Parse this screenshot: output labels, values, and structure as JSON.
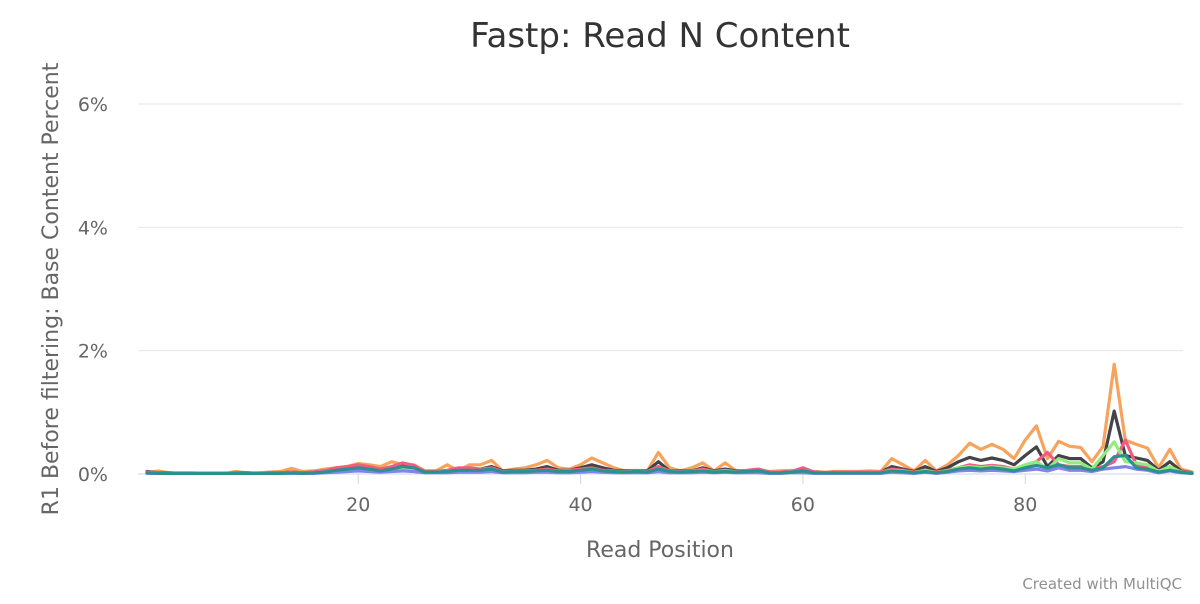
{
  "chart_data": {
    "type": "line",
    "title": "Fastp: Read N Content",
    "xlabel": "Read Position",
    "ylabel": "R1 Before filtering: Base Content Percent",
    "x_ticks": [
      20,
      40,
      60,
      80
    ],
    "y_ticks": [
      0,
      2,
      4,
      6
    ],
    "y_tick_suffix": "%",
    "xlim": [
      1,
      95
    ],
    "ylim": [
      0,
      6
    ],
    "grid": "horizontal",
    "legend": "none",
    "x": [
      1,
      2,
      3,
      4,
      5,
      6,
      7,
      8,
      9,
      10,
      11,
      12,
      13,
      14,
      15,
      16,
      17,
      18,
      19,
      20,
      21,
      22,
      23,
      24,
      25,
      26,
      27,
      28,
      29,
      30,
      31,
      32,
      33,
      34,
      35,
      36,
      37,
      38,
      39,
      40,
      41,
      42,
      43,
      44,
      45,
      46,
      47,
      48,
      49,
      50,
      51,
      52,
      53,
      54,
      55,
      56,
      57,
      58,
      59,
      60,
      61,
      62,
      63,
      64,
      65,
      66,
      67,
      68,
      69,
      70,
      71,
      72,
      73,
      74,
      75,
      76,
      77,
      78,
      79,
      80,
      81,
      82,
      83,
      84,
      85,
      86,
      87,
      88,
      89,
      90,
      91,
      92,
      93,
      94,
      95
    ],
    "series": [
      {
        "color": "#f7a35c",
        "values": [
          0.02,
          0.05,
          0.02,
          0.02,
          0.02,
          0.01,
          0.01,
          0.01,
          0.04,
          0.02,
          0.02,
          0.03,
          0.04,
          0.09,
          0.04,
          0.05,
          0.08,
          0.1,
          0.12,
          0.17,
          0.15,
          0.12,
          0.2,
          0.15,
          0.15,
          0.05,
          0.05,
          0.15,
          0.05,
          0.15,
          0.15,
          0.22,
          0.05,
          0.08,
          0.1,
          0.15,
          0.22,
          0.1,
          0.08,
          0.15,
          0.26,
          0.18,
          0.1,
          0.05,
          0.06,
          0.05,
          0.35,
          0.1,
          0.05,
          0.1,
          0.18,
          0.05,
          0.18,
          0.05,
          0.05,
          0.05,
          0.04,
          0.05,
          0.06,
          0.05,
          0.04,
          0.03,
          0.04,
          0.04,
          0.04,
          0.05,
          0.04,
          0.25,
          0.15,
          0.05,
          0.22,
          0.05,
          0.15,
          0.3,
          0.5,
          0.4,
          0.48,
          0.4,
          0.25,
          0.55,
          0.78,
          0.25,
          0.53,
          0.45,
          0.43,
          0.2,
          0.45,
          1.78,
          0.55,
          0.48,
          0.42,
          0.1,
          0.4,
          0.08,
          0.03
        ]
      },
      {
        "color": "#434348",
        "values": [
          0.04,
          0.02,
          0.02,
          0.01,
          0.01,
          0.01,
          0.01,
          0.01,
          0.02,
          0.02,
          0.01,
          0.02,
          0.02,
          0.03,
          0.02,
          0.03,
          0.05,
          0.08,
          0.1,
          0.12,
          0.1,
          0.08,
          0.1,
          0.17,
          0.12,
          0.04,
          0.04,
          0.05,
          0.08,
          0.08,
          0.08,
          0.12,
          0.05,
          0.06,
          0.06,
          0.08,
          0.12,
          0.06,
          0.06,
          0.1,
          0.15,
          0.1,
          0.06,
          0.05,
          0.05,
          0.05,
          0.2,
          0.05,
          0.05,
          0.05,
          0.1,
          0.05,
          0.08,
          0.05,
          0.05,
          0.05,
          0.03,
          0.03,
          0.04,
          0.04,
          0.03,
          0.02,
          0.03,
          0.03,
          0.03,
          0.03,
          0.03,
          0.12,
          0.08,
          0.04,
          0.12,
          0.04,
          0.1,
          0.2,
          0.27,
          0.22,
          0.26,
          0.22,
          0.15,
          0.3,
          0.44,
          0.12,
          0.3,
          0.25,
          0.25,
          0.1,
          0.2,
          1.02,
          0.3,
          0.26,
          0.22,
          0.06,
          0.2,
          0.05,
          0.02
        ]
      },
      {
        "color": "#f15c80",
        "values": [
          0.03,
          0.02,
          0.01,
          0.01,
          0.01,
          0.01,
          0.01,
          0.01,
          0.02,
          0.01,
          0.01,
          0.02,
          0.02,
          0.03,
          0.02,
          0.03,
          0.05,
          0.1,
          0.12,
          0.15,
          0.12,
          0.08,
          0.12,
          0.18,
          0.14,
          0.04,
          0.04,
          0.06,
          0.1,
          0.1,
          0.08,
          0.1,
          0.04,
          0.05,
          0.05,
          0.06,
          0.08,
          0.05,
          0.06,
          0.08,
          0.1,
          0.06,
          0.05,
          0.04,
          0.05,
          0.04,
          0.12,
          0.05,
          0.04,
          0.05,
          0.08,
          0.04,
          0.06,
          0.04,
          0.06,
          0.08,
          0.03,
          0.03,
          0.04,
          0.1,
          0.03,
          0.02,
          0.03,
          0.03,
          0.03,
          0.03,
          0.03,
          0.08,
          0.06,
          0.03,
          0.06,
          0.03,
          0.06,
          0.1,
          0.15,
          0.12,
          0.14,
          0.12,
          0.08,
          0.14,
          0.2,
          0.35,
          0.15,
          0.12,
          0.12,
          0.08,
          0.12,
          0.2,
          0.55,
          0.15,
          0.12,
          0.05,
          0.1,
          0.04,
          0.02
        ]
      },
      {
        "color": "#90ed7d",
        "values": [
          0.02,
          0.01,
          0.01,
          0.01,
          0.01,
          0.01,
          0.01,
          0.01,
          0.01,
          0.01,
          0.01,
          0.01,
          0.01,
          0.02,
          0.01,
          0.02,
          0.03,
          0.05,
          0.06,
          0.08,
          0.06,
          0.05,
          0.06,
          0.1,
          0.08,
          0.03,
          0.03,
          0.04,
          0.05,
          0.05,
          0.05,
          0.08,
          0.03,
          0.04,
          0.04,
          0.05,
          0.06,
          0.04,
          0.04,
          0.05,
          0.08,
          0.05,
          0.04,
          0.03,
          0.04,
          0.03,
          0.08,
          0.04,
          0.03,
          0.04,
          0.06,
          0.03,
          0.05,
          0.03,
          0.03,
          0.03,
          0.02,
          0.02,
          0.03,
          0.03,
          0.02,
          0.02,
          0.02,
          0.02,
          0.02,
          0.02,
          0.02,
          0.06,
          0.05,
          0.02,
          0.06,
          0.02,
          0.05,
          0.1,
          0.12,
          0.1,
          0.12,
          0.1,
          0.08,
          0.15,
          0.2,
          0.08,
          0.25,
          0.18,
          0.18,
          0.08,
          0.3,
          0.52,
          0.2,
          0.18,
          0.15,
          0.04,
          0.12,
          0.03,
          0.01
        ]
      },
      {
        "color": "#8085e9",
        "values": [
          0.01,
          0.01,
          0.01,
          0.01,
          0.01,
          0.01,
          0.01,
          0.01,
          0.01,
          0.01,
          0.01,
          0.01,
          0.01,
          0.01,
          0.01,
          0.01,
          0.02,
          0.03,
          0.04,
          0.05,
          0.04,
          0.03,
          0.04,
          0.05,
          0.04,
          0.02,
          0.02,
          0.02,
          0.03,
          0.03,
          0.03,
          0.04,
          0.02,
          0.02,
          0.02,
          0.03,
          0.03,
          0.02,
          0.02,
          0.03,
          0.04,
          0.03,
          0.02,
          0.02,
          0.02,
          0.02,
          0.04,
          0.02,
          0.02,
          0.02,
          0.03,
          0.02,
          0.03,
          0.02,
          0.02,
          0.02,
          0.01,
          0.01,
          0.02,
          0.02,
          0.01,
          0.01,
          0.01,
          0.01,
          0.01,
          0.01,
          0.01,
          0.03,
          0.02,
          0.01,
          0.03,
          0.01,
          0.03,
          0.05,
          0.06,
          0.05,
          0.06,
          0.05,
          0.04,
          0.06,
          0.08,
          0.05,
          0.1,
          0.06,
          0.06,
          0.04,
          0.08,
          0.1,
          0.12,
          0.08,
          0.06,
          0.02,
          0.05,
          0.02,
          0.01
        ]
      },
      {
        "color": "#2b908f",
        "values": [
          0.02,
          0.01,
          0.01,
          0.01,
          0.01,
          0.01,
          0.01,
          0.01,
          0.01,
          0.01,
          0.01,
          0.01,
          0.01,
          0.02,
          0.01,
          0.02,
          0.03,
          0.06,
          0.08,
          0.1,
          0.08,
          0.05,
          0.08,
          0.12,
          0.1,
          0.03,
          0.03,
          0.04,
          0.06,
          0.06,
          0.06,
          0.08,
          0.03,
          0.04,
          0.04,
          0.05,
          0.06,
          0.04,
          0.04,
          0.06,
          0.08,
          0.05,
          0.04,
          0.03,
          0.04,
          0.03,
          0.08,
          0.04,
          0.03,
          0.04,
          0.05,
          0.03,
          0.04,
          0.03,
          0.04,
          0.05,
          0.02,
          0.02,
          0.03,
          0.05,
          0.02,
          0.02,
          0.02,
          0.02,
          0.02,
          0.02,
          0.02,
          0.05,
          0.04,
          0.02,
          0.04,
          0.02,
          0.04,
          0.08,
          0.1,
          0.08,
          0.1,
          0.08,
          0.05,
          0.1,
          0.14,
          0.1,
          0.15,
          0.1,
          0.1,
          0.06,
          0.1,
          0.28,
          0.3,
          0.1,
          0.08,
          0.03,
          0.06,
          0.03,
          0.01
        ]
      }
    ]
  },
  "credit": "Created with MultiQC"
}
